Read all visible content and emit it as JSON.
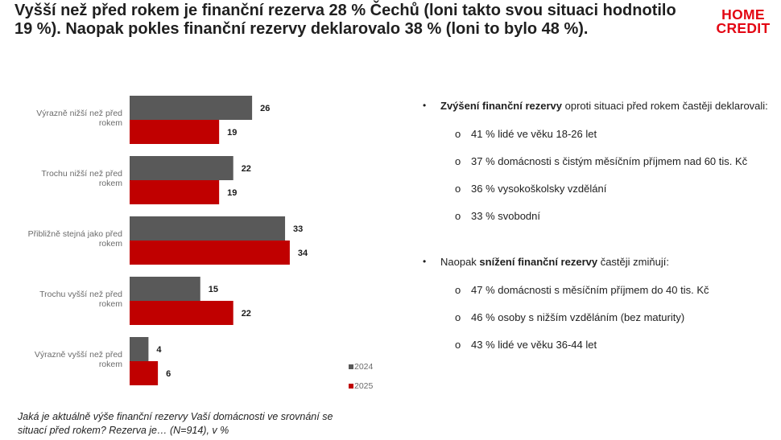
{
  "header": {
    "title": "Vyšší než před rokem je finanční rezerva 28 % Čechů (loni takto svou situaci hodnotilo 19 %). Naopak pokles finanční rezervy deklarovalo 38 % (loni to bylo 48 %).",
    "logo_line1": "HOME",
    "logo_line2": "CREDIT"
  },
  "colors": {
    "series_2024": "#595959",
    "series_2025": "#c00000",
    "brand": "#e30613"
  },
  "chart_data": {
    "type": "bar",
    "orientation": "horizontal",
    "categories": [
      [
        "Výrazně nižší než před",
        "rokem"
      ],
      [
        "Trochu nižší než před",
        "rokem"
      ],
      [
        "Přibližně stejná jako před",
        "rokem"
      ],
      [
        "Trochu vyšší než před",
        "rokem"
      ],
      [
        "Výrazně vyšší než před",
        "rokem"
      ]
    ],
    "series": [
      {
        "name": "2024",
        "values": [
          26,
          22,
          33,
          15,
          4
        ]
      },
      {
        "name": "2025",
        "values": [
          19,
          19,
          34,
          22,
          6
        ]
      }
    ],
    "xlim": [
      0,
      40
    ],
    "grid": false,
    "legend": "bottom-right"
  },
  "question": "Jaká je aktuálně výše finanční rezervy Vaší domácnosti ve srovnání se situací před rokem? Rezerva je… (N=914), v %",
  "panel": {
    "bullet_marker": "•",
    "sub_marker": "o",
    "increase": {
      "bold": "Zvýšení finanční rezervy",
      "rest": " oproti situaci před rokem častěji deklarovali:",
      "items": [
        "41 % lidé ve věku 18-26 let",
        "37 % domácnosti s čistým měsíčním příjmem nad 60 tis. Kč",
        "36 % vysokoškolsky vzdělání",
        "33 % svobodní"
      ]
    },
    "decrease": {
      "prefix": "Naopak ",
      "bold": "snížení finanční rezervy",
      "rest": " častěji zmiňují:",
      "items": [
        "47 % domácnosti s měsíčním příjmem do 40 tis. Kč",
        "46 % osoby s nižším vzděláním (bez maturity)",
        "43 % lidé ve věku 36-44 let"
      ]
    }
  }
}
